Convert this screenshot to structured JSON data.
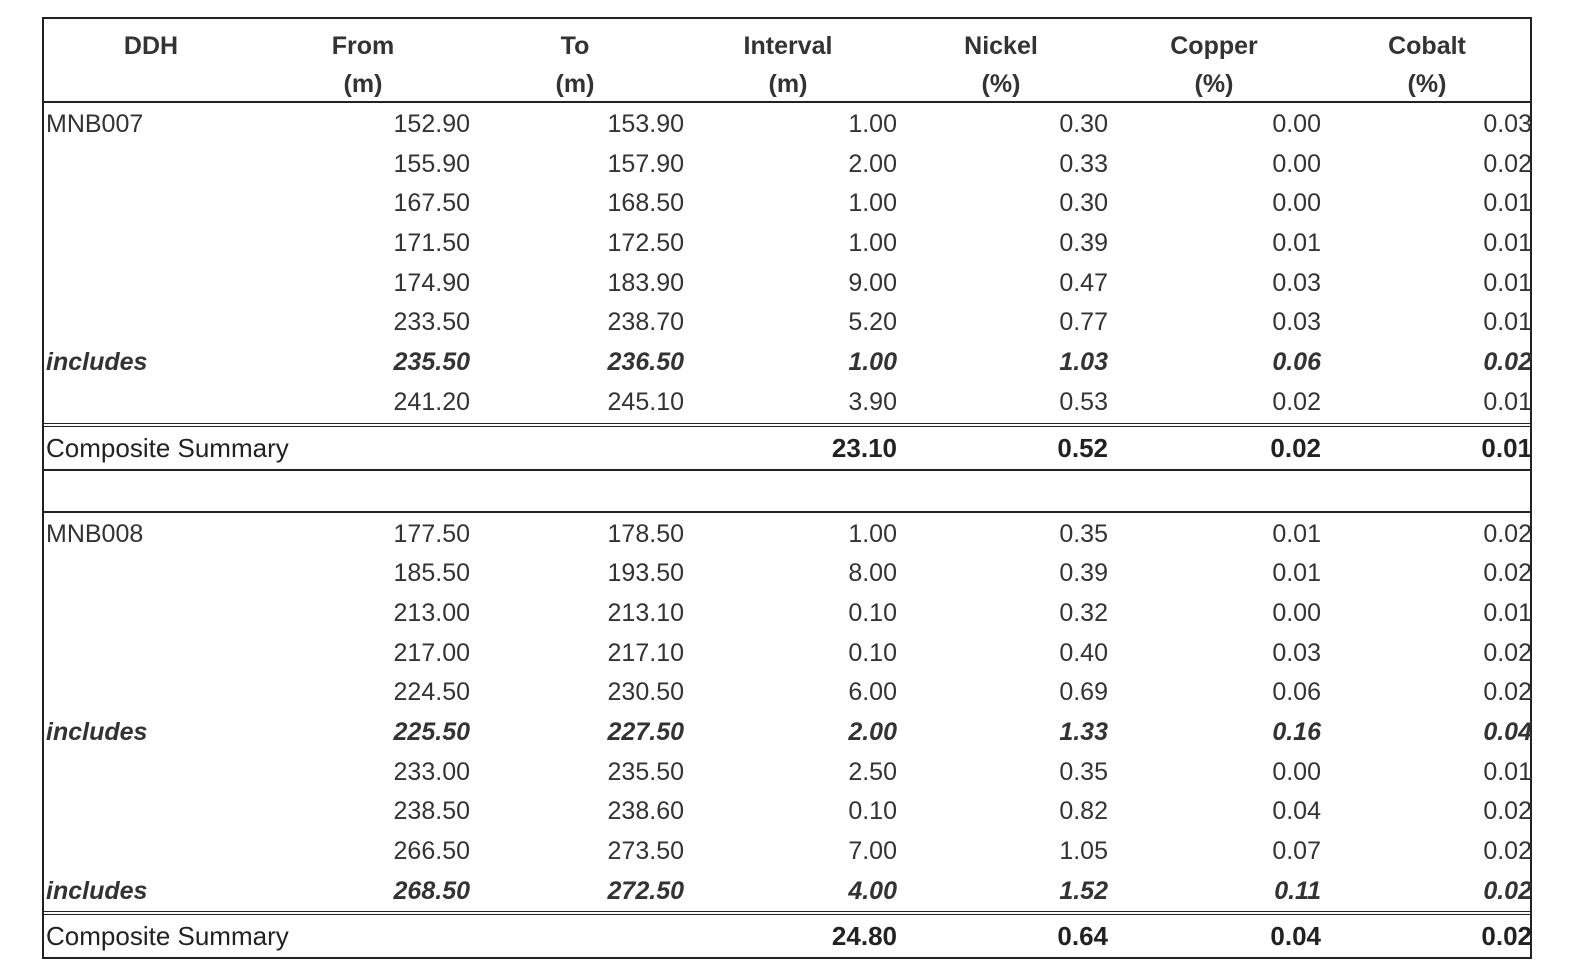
{
  "headers": [
    {
      "l1": "DDH",
      "l2": ""
    },
    {
      "l1": "From",
      "l2": "(m)"
    },
    {
      "l1": "To",
      "l2": "(m)"
    },
    {
      "l1": "Interval",
      "l2": "(m)"
    },
    {
      "l1": "Nickel",
      "l2": "(%)"
    },
    {
      "l1": "Copper",
      "l2": "(%)"
    },
    {
      "l1": "Cobalt",
      "l2": "(%)"
    }
  ],
  "sections": [
    {
      "rows": [
        {
          "ddh": "MNB007",
          "from": "152.90",
          "to": "153.90",
          "interval": "1.00",
          "ni": "0.30",
          "cu": "0.00",
          "co": "0.03",
          "includes": false
        },
        {
          "ddh": "",
          "from": "155.90",
          "to": "157.90",
          "interval": "2.00",
          "ni": "0.33",
          "cu": "0.00",
          "co": "0.02",
          "includes": false
        },
        {
          "ddh": "",
          "from": "167.50",
          "to": "168.50",
          "interval": "1.00",
          "ni": "0.30",
          "cu": "0.00",
          "co": "0.01",
          "includes": false
        },
        {
          "ddh": "",
          "from": "171.50",
          "to": "172.50",
          "interval": "1.00",
          "ni": "0.39",
          "cu": "0.01",
          "co": "0.01",
          "includes": false
        },
        {
          "ddh": "",
          "from": "174.90",
          "to": "183.90",
          "interval": "9.00",
          "ni": "0.47",
          "cu": "0.03",
          "co": "0.01",
          "includes": false
        },
        {
          "ddh": "",
          "from": "233.50",
          "to": "238.70",
          "interval": "5.20",
          "ni": "0.77",
          "cu": "0.03",
          "co": "0.01",
          "includes": false
        },
        {
          "ddh": "includes",
          "from": "235.50",
          "to": "236.50",
          "interval": "1.00",
          "ni": "1.03",
          "cu": "0.06",
          "co": "0.02",
          "includes": true
        },
        {
          "ddh": "",
          "from": "241.20",
          "to": "245.10",
          "interval": "3.90",
          "ni": "0.53",
          "cu": "0.02",
          "co": "0.01",
          "includes": false
        }
      ],
      "summary": {
        "label": "Composite Summary",
        "interval": "23.10",
        "ni": "0.52",
        "cu": "0.02",
        "co": "0.01"
      }
    },
    {
      "rows": [
        {
          "ddh": "MNB008",
          "from": "177.50",
          "to": "178.50",
          "interval": "1.00",
          "ni": "0.35",
          "cu": "0.01",
          "co": "0.02",
          "includes": false
        },
        {
          "ddh": "",
          "from": "185.50",
          "to": "193.50",
          "interval": "8.00",
          "ni": "0.39",
          "cu": "0.01",
          "co": "0.02",
          "includes": false
        },
        {
          "ddh": "",
          "from": "213.00",
          "to": "213.10",
          "interval": "0.10",
          "ni": "0.32",
          "cu": "0.00",
          "co": "0.01",
          "includes": false
        },
        {
          "ddh": "",
          "from": "217.00",
          "to": "217.10",
          "interval": "0.10",
          "ni": "0.40",
          "cu": "0.03",
          "co": "0.02",
          "includes": false
        },
        {
          "ddh": "",
          "from": "224.50",
          "to": "230.50",
          "interval": "6.00",
          "ni": "0.69",
          "cu": "0.06",
          "co": "0.02",
          "includes": false
        },
        {
          "ddh": "includes",
          "from": "225.50",
          "to": "227.50",
          "interval": "2.00",
          "ni": "1.33",
          "cu": "0.16",
          "co": "0.04",
          "includes": true
        },
        {
          "ddh": "",
          "from": "233.00",
          "to": "235.50",
          "interval": "2.50",
          "ni": "0.35",
          "cu": "0.00",
          "co": "0.01",
          "includes": false
        },
        {
          "ddh": "",
          "from": "238.50",
          "to": "238.60",
          "interval": "0.10",
          "ni": "0.82",
          "cu": "0.04",
          "co": "0.02",
          "includes": false
        },
        {
          "ddh": "",
          "from": "266.50",
          "to": "273.50",
          "interval": "7.00",
          "ni": "1.05",
          "cu": "0.07",
          "co": "0.02",
          "includes": false
        },
        {
          "ddh": "includes",
          "from": "268.50",
          "to": "272.50",
          "interval": "4.00",
          "ni": "1.52",
          "cu": "0.11",
          "co": "0.02",
          "includes": true
        }
      ],
      "summary": {
        "label": "Composite Summary",
        "interval": "24.80",
        "ni": "0.64",
        "cu": "0.04",
        "co": "0.02"
      }
    }
  ]
}
